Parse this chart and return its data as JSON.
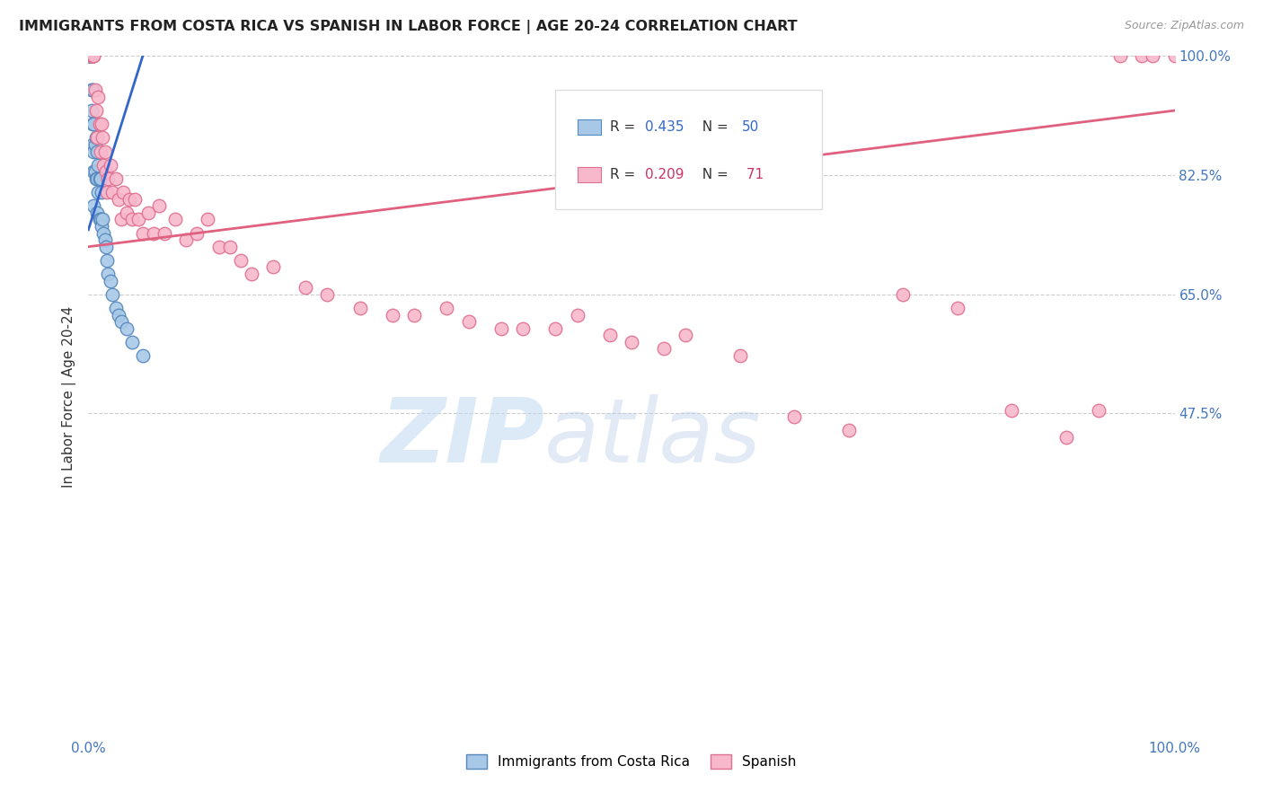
{
  "title": "IMMIGRANTS FROM COSTA RICA VS SPANISH IN LABOR FORCE | AGE 20-24 CORRELATION CHART",
  "source": "Source: ZipAtlas.com",
  "ylabel": "In Labor Force | Age 20-24",
  "watermark_zip": "ZIP",
  "watermark_atlas": "atlas",
  "blue_scatter": {
    "x": [
      0.001,
      0.001,
      0.001,
      0.001,
      0.001,
      0.002,
      0.002,
      0.002,
      0.003,
      0.003,
      0.003,
      0.003,
      0.004,
      0.004,
      0.004,
      0.004,
      0.004,
      0.005,
      0.005,
      0.005,
      0.005,
      0.006,
      0.006,
      0.007,
      0.007,
      0.008,
      0.008,
      0.008,
      0.009,
      0.009,
      0.01,
      0.01,
      0.011,
      0.011,
      0.012,
      0.012,
      0.013,
      0.014,
      0.015,
      0.016,
      0.017,
      0.018,
      0.02,
      0.022,
      0.025,
      0.028,
      0.03,
      0.035,
      0.04,
      0.05
    ],
    "y": [
      1.0,
      1.0,
      1.0,
      1.0,
      1.0,
      1.0,
      1.0,
      1.0,
      1.0,
      1.0,
      0.95,
      0.92,
      1.0,
      1.0,
      0.95,
      0.9,
      0.87,
      0.9,
      0.86,
      0.83,
      0.78,
      0.87,
      0.83,
      0.88,
      0.82,
      0.86,
      0.82,
      0.77,
      0.84,
      0.8,
      0.82,
      0.76,
      0.82,
      0.76,
      0.8,
      0.75,
      0.76,
      0.74,
      0.73,
      0.72,
      0.7,
      0.68,
      0.67,
      0.65,
      0.63,
      0.62,
      0.61,
      0.6,
      0.58,
      0.56
    ]
  },
  "pink_scatter": {
    "x": [
      0.002,
      0.003,
      0.004,
      0.004,
      0.005,
      0.005,
      0.006,
      0.007,
      0.008,
      0.009,
      0.01,
      0.011,
      0.012,
      0.013,
      0.014,
      0.015,
      0.016,
      0.017,
      0.018,
      0.02,
      0.022,
      0.025,
      0.028,
      0.03,
      0.032,
      0.035,
      0.038,
      0.04,
      0.043,
      0.046,
      0.05,
      0.055,
      0.06,
      0.065,
      0.07,
      0.08,
      0.09,
      0.1,
      0.11,
      0.12,
      0.13,
      0.14,
      0.15,
      0.17,
      0.2,
      0.22,
      0.25,
      0.28,
      0.3,
      0.33,
      0.35,
      0.38,
      0.4,
      0.43,
      0.45,
      0.48,
      0.5,
      0.53,
      0.55,
      0.6,
      0.65,
      0.7,
      0.75,
      0.8,
      0.85,
      0.9,
      0.93,
      0.95,
      0.97,
      0.98,
      1.0
    ],
    "y": [
      1.0,
      1.0,
      1.0,
      1.0,
      1.0,
      1.0,
      0.95,
      0.92,
      0.88,
      0.94,
      0.9,
      0.86,
      0.9,
      0.88,
      0.84,
      0.86,
      0.83,
      0.8,
      0.82,
      0.84,
      0.8,
      0.82,
      0.79,
      0.76,
      0.8,
      0.77,
      0.79,
      0.76,
      0.79,
      0.76,
      0.74,
      0.77,
      0.74,
      0.78,
      0.74,
      0.76,
      0.73,
      0.74,
      0.76,
      0.72,
      0.72,
      0.7,
      0.68,
      0.69,
      0.66,
      0.65,
      0.63,
      0.62,
      0.62,
      0.63,
      0.61,
      0.6,
      0.6,
      0.6,
      0.62,
      0.59,
      0.58,
      0.57,
      0.59,
      0.56,
      0.47,
      0.45,
      0.65,
      0.63,
      0.48,
      0.44,
      0.48,
      1.0,
      1.0,
      1.0,
      1.0
    ]
  },
  "blue_line": {
    "x0": 0.0,
    "y0": 0.745,
    "x1": 0.05,
    "y1": 1.0
  },
  "pink_line": {
    "x0": 0.0,
    "y0": 0.72,
    "x1": 1.0,
    "y1": 0.92
  },
  "blue_color": "#a8c8e8",
  "blue_edge": "#5588bb",
  "pink_color": "#f8b8cc",
  "pink_edge": "#e07090",
  "blue_line_color": "#3366cc",
  "pink_line_color": "#e06080",
  "legend_blue_label_R": "R = 0.435",
  "legend_blue_label_N": "N = 50",
  "legend_pink_label_R": "R = 0.209",
  "legend_pink_label_N": "N =  71",
  "legend_R_color": "#333333",
  "legend_blue_val_color": "#3366cc",
  "legend_pink_val_color": "#cc3366",
  "bottom_legend_blue": "Immigrants from Costa Rica",
  "bottom_legend_pink": "Spanish",
  "ytick_positions": [
    1.0,
    0.825,
    0.65,
    0.475
  ],
  "ytick_labels": [
    "100.0%",
    "82.5%",
    "65.0%",
    "47.5%"
  ],
  "xtick_positions": [
    0.0,
    1.0
  ],
  "xtick_labels": [
    "0.0%",
    "100.0%"
  ],
  "tick_color": "#4477bb",
  "grid_color": "#cccccc",
  "background_color": "#ffffff"
}
